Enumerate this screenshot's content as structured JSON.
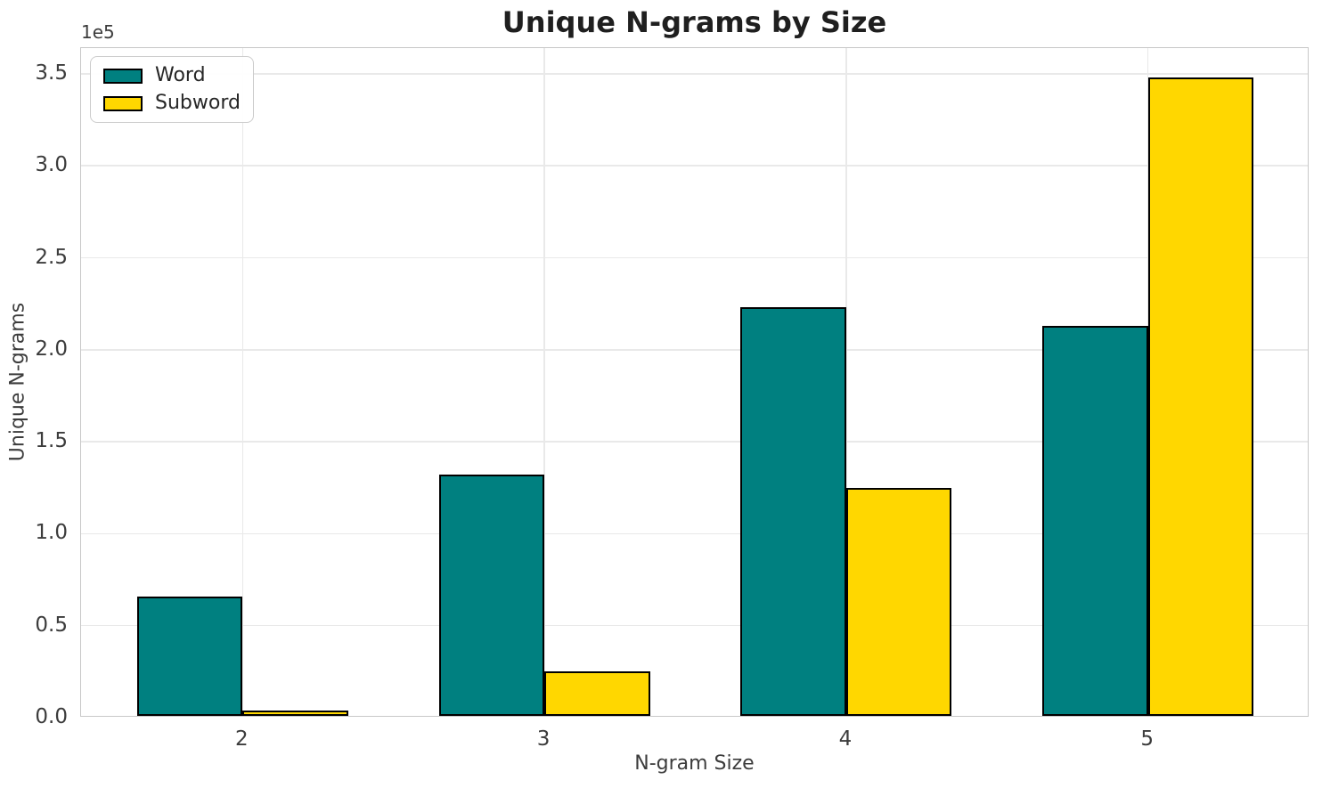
{
  "chart_data": {
    "type": "bar",
    "title": "Unique N-grams by Size",
    "xlabel": "N-gram Size",
    "ylabel": "Unique N-grams",
    "y_offset_text": "1e5",
    "categories": [
      2,
      3,
      4,
      5
    ],
    "xtick_labels": [
      "2",
      "3",
      "4",
      "5"
    ],
    "series": [
      {
        "name": "Word",
        "color": "#008080",
        "values": [
          65000,
          131000,
          222000,
          212000
        ]
      },
      {
        "name": "Subword",
        "color": "#FFD700",
        "values": [
          3000,
          24000,
          124000,
          347000
        ]
      }
    ],
    "bar_width": 0.35,
    "bar_edge_color": "#000000",
    "xlim": [
      1.465,
      5.535
    ],
    "ylim": [
      0,
      364000
    ],
    "yticks": [
      0,
      50000,
      100000,
      150000,
      200000,
      250000,
      300000,
      350000
    ],
    "ytick_labels": [
      "0.0",
      "0.5",
      "1.0",
      "1.5",
      "2.0",
      "2.5",
      "3.0",
      "3.5"
    ],
    "grid": "both",
    "legend_position": "upper left"
  },
  "colors": {
    "background": "#ffffff",
    "grid": "#e9e9e9",
    "spine": "#c8c8c8",
    "tick_text": "#3c3c3c",
    "title_text": "#1f1f1f",
    "legend_border": "#cccccc"
  }
}
